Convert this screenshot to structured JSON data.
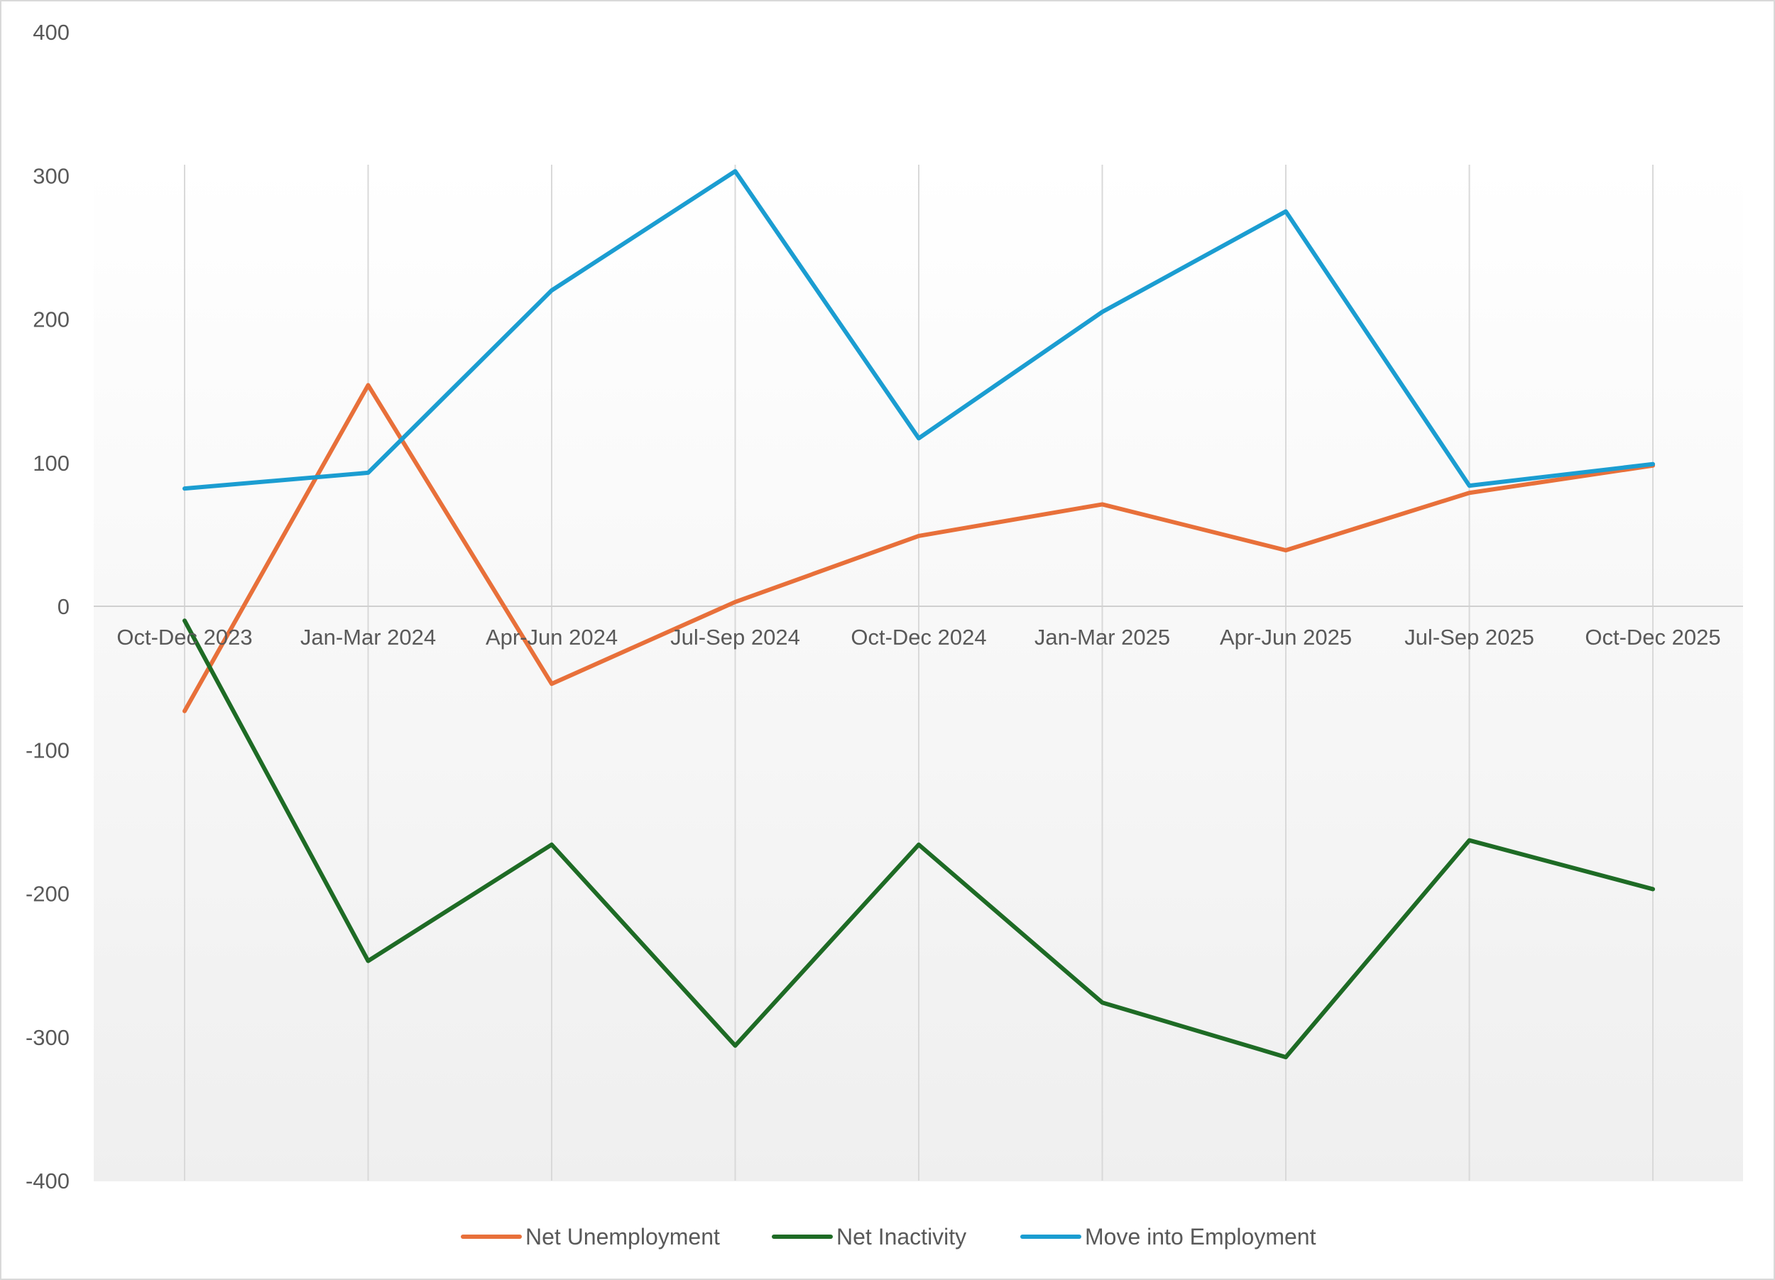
{
  "chart_data": {
    "type": "line",
    "title": "",
    "xlabel": "",
    "ylabel": "",
    "categories": [
      "Oct-Dec 2023",
      "Jan-Mar 2024",
      "Apr-Jun 2024",
      "Jul-Sep 2024",
      "Oct-Dec 2024",
      "Jan-Mar 2025",
      "Apr-Jun 2025",
      "Jul-Sep 2025",
      "Oct-Dec 2025"
    ],
    "ylim": [
      -400,
      400
    ],
    "yticks": [
      400,
      300,
      200,
      100,
      0,
      -100,
      -200,
      -300,
      -400
    ],
    "grid": "vertical",
    "legend_position": "bottom",
    "series": [
      {
        "name": "Net Unemployment",
        "color": "#e8703a",
        "values": [
          -73,
          154,
          -54,
          3,
          49,
          71,
          39,
          79,
          98
        ]
      },
      {
        "name": "Net Inactivity",
        "color": "#1e6b25",
        "values": [
          -10,
          -247,
          -166,
          -306,
          -166,
          -276,
          -314,
          -163,
          -197
        ]
      },
      {
        "name": "Move into Employment",
        "color": "#1b9dd1",
        "values": [
          82,
          93,
          220,
          303,
          117,
          205,
          275,
          84,
          99
        ]
      }
    ]
  }
}
